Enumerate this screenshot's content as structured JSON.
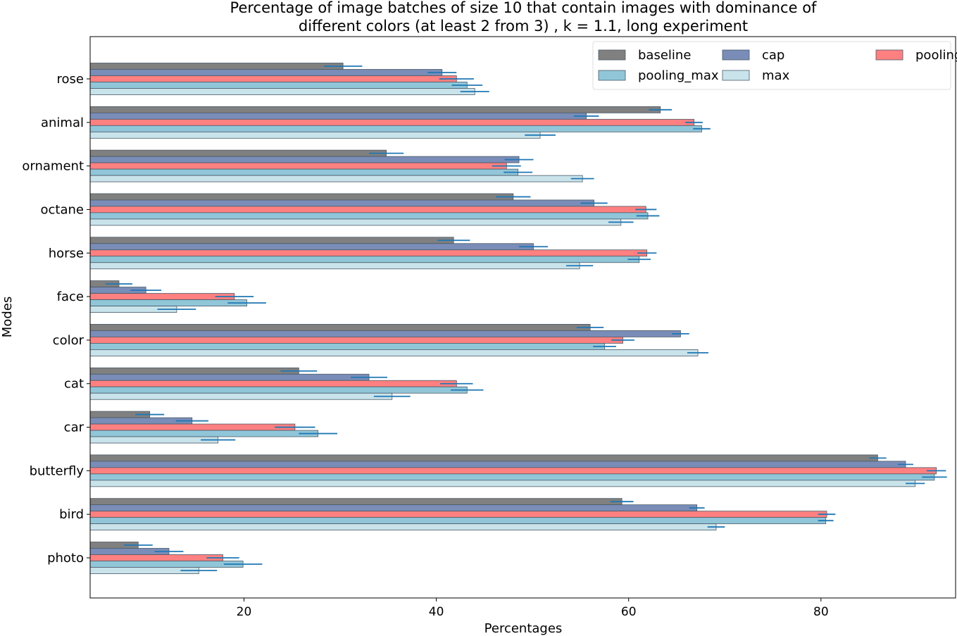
{
  "chart_data": {
    "type": "bar",
    "orientation": "horizontal",
    "title_lines": [
      "Percentage of image batches of size 10 that contain images with dominance of",
      "different colors (at least 2 from 3) , k = 1.1, long experiment"
    ],
    "xlabel": "Percentages",
    "ylabel": "Modes",
    "xlim": [
      4.0,
      94.0
    ],
    "xticks": [
      20,
      40,
      60,
      80
    ],
    "categories": [
      "rose",
      "animal",
      "ornament",
      "octane",
      "horse",
      "face",
      "color",
      "cat",
      "car",
      "butterfly",
      "bird",
      "photo"
    ],
    "legend_position": "top-right",
    "series": [
      {
        "name": "baseline",
        "color": "#808080",
        "values": [
          30.3,
          63.3,
          34.8,
          48.0,
          41.8,
          7.0,
          56.0,
          25.7,
          10.2,
          85.9,
          59.3,
          9.0
        ],
        "errors": [
          2.0,
          1.2,
          1.8,
          1.8,
          1.7,
          1.4,
          1.4,
          1.9,
          1.5,
          0.9,
          1.2,
          1.5
        ]
      },
      {
        "name": "cap",
        "color": "#7a8db8",
        "values": [
          40.6,
          55.6,
          48.6,
          56.4,
          50.1,
          9.8,
          65.4,
          33.0,
          14.6,
          88.8,
          67.1,
          12.2
        ],
        "errors": [
          1.5,
          1.3,
          1.5,
          1.4,
          1.5,
          1.6,
          0.9,
          1.9,
          1.7,
          0.8,
          0.8,
          1.5
        ]
      },
      {
        "name": "pooling_cap",
        "color": "#ff8080",
        "values": [
          42.1,
          66.8,
          47.3,
          61.8,
          61.9,
          19.0,
          59.4,
          42.1,
          25.3,
          92.0,
          80.6,
          17.8
        ],
        "errors": [
          1.8,
          0.9,
          1.5,
          1.1,
          1.0,
          2.0,
          1.2,
          1.7,
          2.1,
          1.0,
          0.9,
          1.7
        ]
      },
      {
        "name": "pooling_max",
        "color": "#91c6d9",
        "values": [
          43.2,
          67.6,
          48.5,
          62.0,
          61.1,
          20.3,
          57.5,
          43.2,
          27.7,
          91.8,
          80.5,
          19.9
        ],
        "errors": [
          1.6,
          0.9,
          1.5,
          1.2,
          1.2,
          2.0,
          1.2,
          1.7,
          2.0,
          1.3,
          0.8,
          2.0
        ]
      },
      {
        "name": "max",
        "color": "#c9e3eb",
        "values": [
          44.0,
          50.8,
          55.2,
          59.2,
          54.9,
          13.0,
          67.2,
          35.4,
          17.3,
          89.8,
          69.1,
          15.3
        ],
        "errors": [
          1.5,
          1.6,
          1.2,
          1.3,
          1.4,
          2.0,
          1.1,
          1.9,
          1.8,
          1.0,
          0.9,
          1.9
        ]
      }
    ]
  }
}
